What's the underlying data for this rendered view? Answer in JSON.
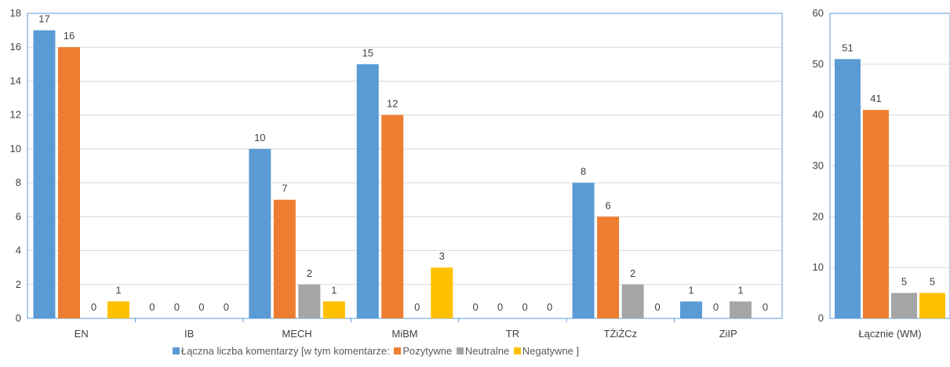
{
  "colors": {
    "total": "#5b9bd5",
    "positive": "#ed7d31",
    "neutral": "#a5a5a5",
    "negative": "#ffc000",
    "frame": "#5b9bd5",
    "grid": "#d9d9d9",
    "text": "#404040"
  },
  "legend": {
    "total": "Łączna liczba komentarzy [w tym komentarze:",
    "positive": "Pozytywne",
    "neutral": "Neutralne",
    "negative": "Negatywne ]"
  },
  "chart_data": [
    {
      "type": "bar",
      "categories": [
        "EN",
        "IB",
        "MECH",
        "MiBM",
        "TR",
        "TŻiŻCz",
        "ZiIP"
      ],
      "series": [
        {
          "name": "Łączna liczba komentarzy [w tym komentarze:",
          "key": "total",
          "values": [
            17,
            0,
            10,
            15,
            0,
            8,
            1
          ]
        },
        {
          "name": "Pozytywne",
          "key": "positive",
          "values": [
            16,
            0,
            7,
            12,
            0,
            6,
            0
          ]
        },
        {
          "name": "Neutralne",
          "key": "neutral",
          "values": [
            0,
            0,
            2,
            0,
            0,
            2,
            1
          ]
        },
        {
          "name": "Negatywne ]",
          "key": "negative",
          "values": [
            1,
            0,
            1,
            3,
            0,
            0,
            0
          ]
        }
      ],
      "ylim": [
        0,
        18
      ],
      "yticks": [
        0,
        2,
        4,
        6,
        8,
        10,
        12,
        14,
        16,
        18
      ],
      "grid": true,
      "legend_position": "bottom"
    },
    {
      "type": "bar",
      "categories": [
        "Łącznie (WM)"
      ],
      "series": [
        {
          "name": "Łączna liczba komentarzy [w tym komentarze:",
          "key": "total",
          "values": [
            51
          ]
        },
        {
          "name": "Pozytywne",
          "key": "positive",
          "values": [
            41
          ]
        },
        {
          "name": "Neutralne",
          "key": "neutral",
          "values": [
            5
          ]
        },
        {
          "name": "Negatywne ]",
          "key": "negative",
          "values": [
            5
          ]
        }
      ],
      "ylim": [
        0,
        60
      ],
      "yticks": [
        0,
        10,
        20,
        30,
        40,
        50,
        60
      ],
      "grid": true
    }
  ]
}
